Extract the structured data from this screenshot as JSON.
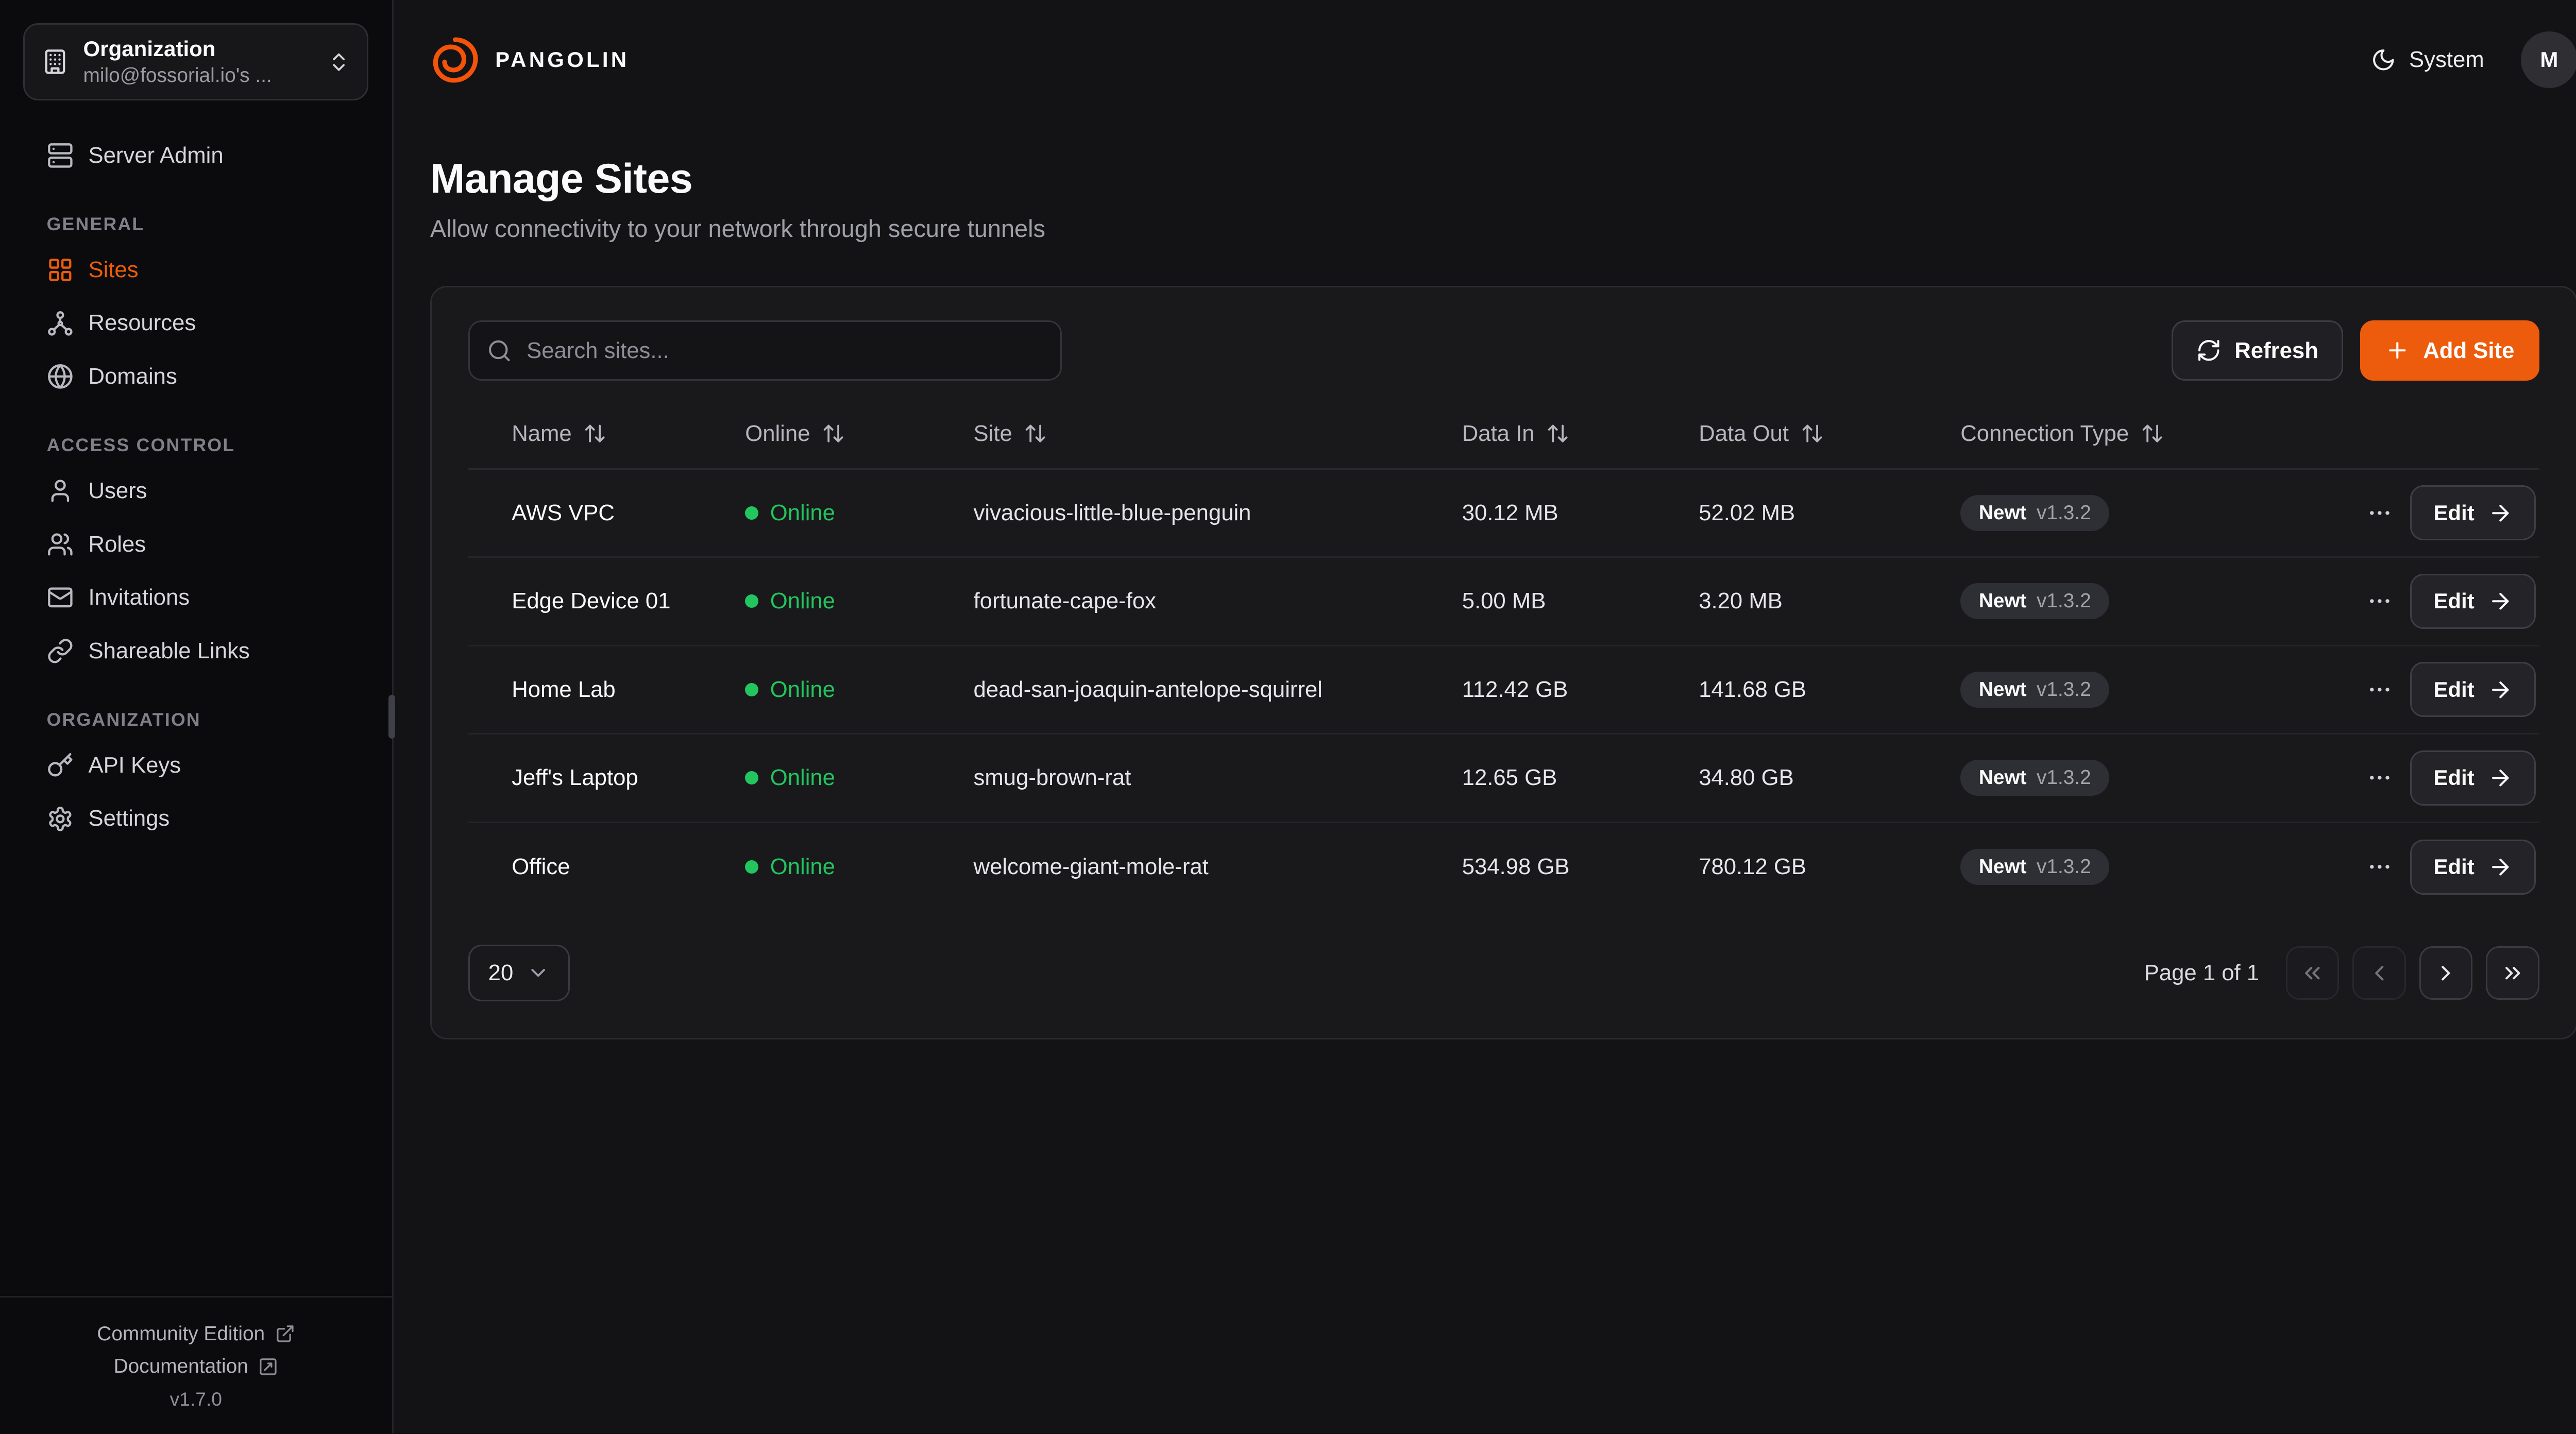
{
  "colors": {
    "accent": "#ED5C0C",
    "logo": "#F4530A",
    "online": "#22C55E"
  },
  "topbar": {
    "brand": "PANGOLIN",
    "theme_label": "System",
    "avatar_initial": "M"
  },
  "sidebar": {
    "org": {
      "title": "Organization",
      "subtitle": "milo@fossorial.io's ...",
      "icon": "building-icon"
    },
    "server_admin": {
      "label": "Server Admin",
      "icon": "server-icon"
    },
    "sections": [
      {
        "heading": "GENERAL",
        "items": [
          {
            "label": "Sites",
            "icon": "sites-icon",
            "active": true
          },
          {
            "label": "Resources",
            "icon": "resources-icon",
            "active": false
          },
          {
            "label": "Domains",
            "icon": "globe-icon",
            "active": false
          }
        ]
      },
      {
        "heading": "ACCESS CONTROL",
        "items": [
          {
            "label": "Users",
            "icon": "user-icon",
            "active": false
          },
          {
            "label": "Roles",
            "icon": "users-icon",
            "active": false
          },
          {
            "label": "Invitations",
            "icon": "mail-icon",
            "active": false
          },
          {
            "label": "Shareable Links",
            "icon": "link-icon",
            "active": false
          }
        ]
      },
      {
        "heading": "ORGANIZATION",
        "items": [
          {
            "label": "API Keys",
            "icon": "key-icon",
            "active": false
          },
          {
            "label": "Settings",
            "icon": "gear-icon",
            "active": false
          }
        ]
      }
    ],
    "footer": {
      "community_label": "Community Edition",
      "docs_label": "Documentation",
      "version": "v1.7.0"
    }
  },
  "page": {
    "title": "Manage Sites",
    "subtitle": "Allow connectivity to your network through secure tunnels"
  },
  "toolbar": {
    "search_placeholder": "Search sites...",
    "refresh_label": "Refresh",
    "add_label": "Add Site"
  },
  "table": {
    "columns": [
      "Name",
      "Online",
      "Site",
      "Data In",
      "Data Out",
      "Connection Type"
    ],
    "rows": [
      {
        "name": "AWS VPC",
        "status": "Online",
        "site": "vivacious-little-blue-penguin",
        "data_in": "30.12 MB",
        "data_out": "52.02 MB",
        "conn": "Newt",
        "conn_version": "v1.3.2",
        "edit_label": "Edit"
      },
      {
        "name": "Edge Device 01",
        "status": "Online",
        "site": "fortunate-cape-fox",
        "data_in": "5.00 MB",
        "data_out": "3.20 MB",
        "conn": "Newt",
        "conn_version": "v1.3.2",
        "edit_label": "Edit"
      },
      {
        "name": "Home Lab",
        "status": "Online",
        "site": "dead-san-joaquin-antelope-squirrel",
        "data_in": "112.42 GB",
        "data_out": "141.68 GB",
        "conn": "Newt",
        "conn_version": "v1.3.2",
        "edit_label": "Edit"
      },
      {
        "name": "Jeff's Laptop",
        "status": "Online",
        "site": "smug-brown-rat",
        "data_in": "12.65 GB",
        "data_out": "34.80 GB",
        "conn": "Newt",
        "conn_version": "v1.3.2",
        "edit_label": "Edit"
      },
      {
        "name": "Office",
        "status": "Online",
        "site": "welcome-giant-mole-rat",
        "data_in": "534.98 GB",
        "data_out": "780.12 GB",
        "conn": "Newt",
        "conn_version": "v1.3.2",
        "edit_label": "Edit"
      }
    ]
  },
  "pagination": {
    "page_size": "20",
    "page_label": "Page 1 of 1"
  }
}
